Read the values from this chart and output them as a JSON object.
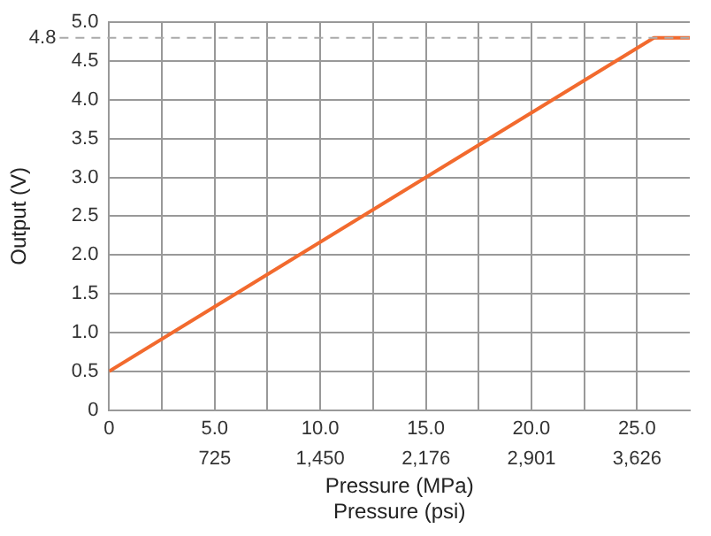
{
  "chart_data": {
    "type": "line",
    "xlabel": "Pressure (MPa)",
    "x2label": "Pressure (psi)",
    "ylabel": "Output (V)",
    "series": [
      {
        "color": "#f26a2e",
        "x": [
          0,
          25.8,
          27.5
        ],
        "values": [
          0.5,
          4.8,
          4.8
        ]
      }
    ],
    "xlim": [
      0,
      27.5
    ],
    "xticks": [
      0,
      {
        "value": 2.5,
        "label": null
      },
      {
        "value": 5,
        "label": "5.0"
      },
      {
        "value": 7.5,
        "label": null
      },
      {
        "value": 10,
        "label": "10.0"
      },
      {
        "value": 12.5,
        "label": null
      },
      {
        "value": 15,
        "label": "15.0"
      },
      {
        "value": 17.5,
        "label": null
      },
      {
        "value": 20,
        "label": "20.0"
      },
      {
        "value": 22.5,
        "label": null
      },
      {
        "value": 25,
        "label": "25.0"
      }
    ],
    "x2lim": [
      0,
      3988
    ],
    "x2ticks": [
      725,
      {
        "value": 1450,
        "label": "1,450"
      },
      {
        "value": 2176,
        "label": "2,176"
      },
      {
        "value": 2901,
        "label": "2,901"
      },
      {
        "value": 3626,
        "label": "3,626"
      }
    ],
    "ylim": [
      0,
      5
    ],
    "yticks": [
      0,
      {
        "value": 0.5,
        "label": "0.5"
      },
      {
        "value": 1,
        "label": "1.0"
      },
      {
        "value": 1.5,
        "label": "1.5"
      },
      {
        "value": 2,
        "label": "2.0"
      },
      {
        "value": 2.5,
        "label": "2.5"
      },
      {
        "value": 3,
        "label": "3.0"
      },
      {
        "value": 3.5,
        "label": "3.5"
      },
      {
        "value": 4,
        "label": "4.0"
      },
      {
        "value": 4.5,
        "label": "4.5"
      },
      {
        "value": 5,
        "label": "5.0"
      }
    ],
    "ref_lines": [
      {
        "axis": "y",
        "value": 4.8,
        "label": "4.8",
        "color": "#aaaaaa",
        "line_style": "dashed"
      }
    ],
    "grid": true,
    "legend": false,
    "marker": "none",
    "line_style": "solid"
  }
}
